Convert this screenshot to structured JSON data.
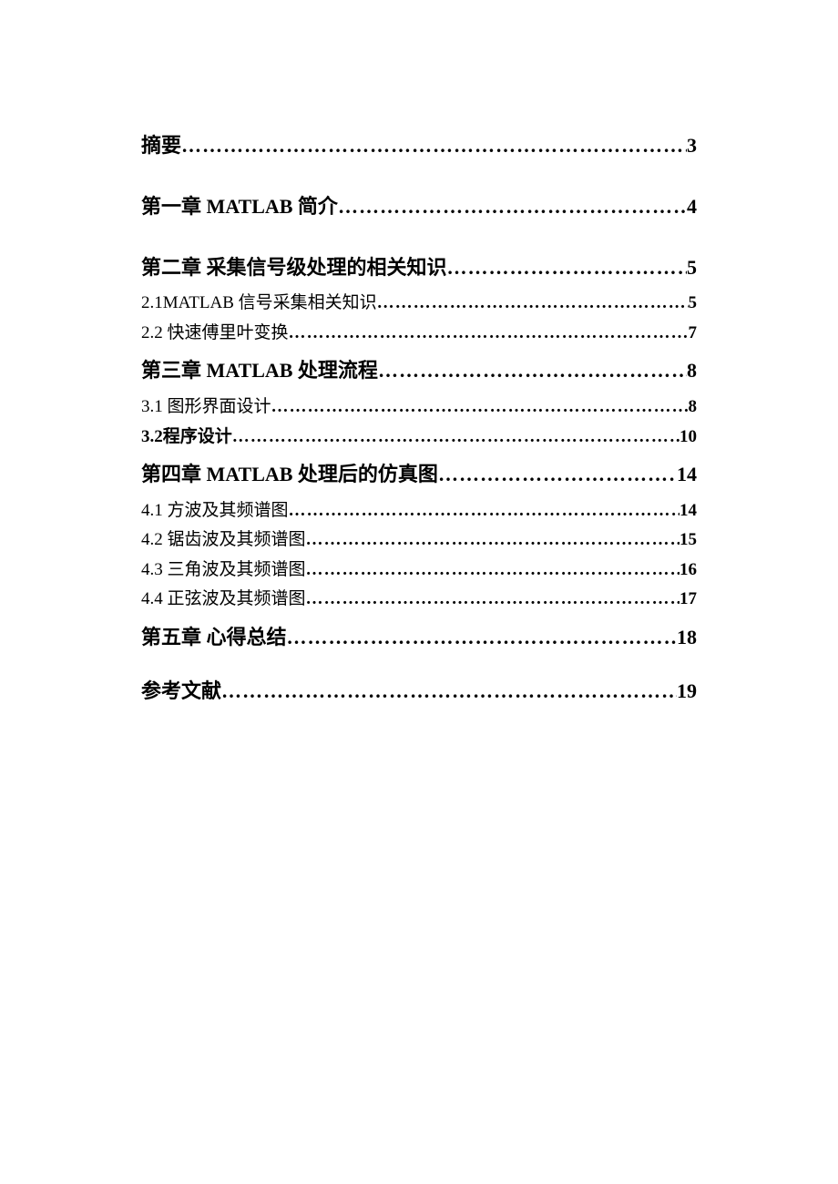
{
  "toc": {
    "entries": [
      {
        "label": "摘要",
        "page": "3",
        "class": "level-main first-big-gap"
      },
      {
        "label": "第一章  MATLAB 简介",
        "page": "4",
        "class": "level-main first-big-gap"
      },
      {
        "label": "第二章  采集信号级处理的相关知识",
        "page": "5",
        "class": "level-chapter"
      },
      {
        "label": "2.1MATLAB 信号采集相关知识",
        "page": "5",
        "class": "level-sub"
      },
      {
        "label": "2.2 快速傅里叶变换",
        "page": "7",
        "class": "level-sub gap-small"
      },
      {
        "label": "第三章 MATLAB 处理流程",
        "page": "8",
        "class": "level-chapter"
      },
      {
        "label": "3.1 图形界面设计",
        "page": "8",
        "class": "level-sub"
      },
      {
        "label": "3.2程序设计",
        "page": "10",
        "class": "level-sub sub-bold gap-small"
      },
      {
        "label": "第四章 MATLAB 处理后的仿真图",
        "page": "14",
        "class": "level-chapter"
      },
      {
        "label": "4.1 方波及其频谱图",
        "page": "14",
        "class": "level-sub"
      },
      {
        "label": "4.2 锯齿波及其频谱图",
        "page": "15",
        "class": "level-sub"
      },
      {
        "label": "4.3 三角波及其频谱图",
        "page": "16",
        "class": "level-sub"
      },
      {
        "label": "4.4 正弦波及其频谱图",
        "page": "17",
        "class": "level-sub gap-small"
      },
      {
        "label": "第五章  心得总结",
        "page": "18",
        "class": "level-chapter"
      },
      {
        "label": "参考文献",
        "page": "19",
        "class": "level-main",
        "style": "margin-top:28px;"
      }
    ],
    "dot_char": "…"
  },
  "colors": {
    "background": "#ffffff",
    "text": "#000000"
  },
  "fonts": {
    "main_family": "SimSun",
    "heading_size_pt": 16,
    "sub_size_pt": 14
  }
}
